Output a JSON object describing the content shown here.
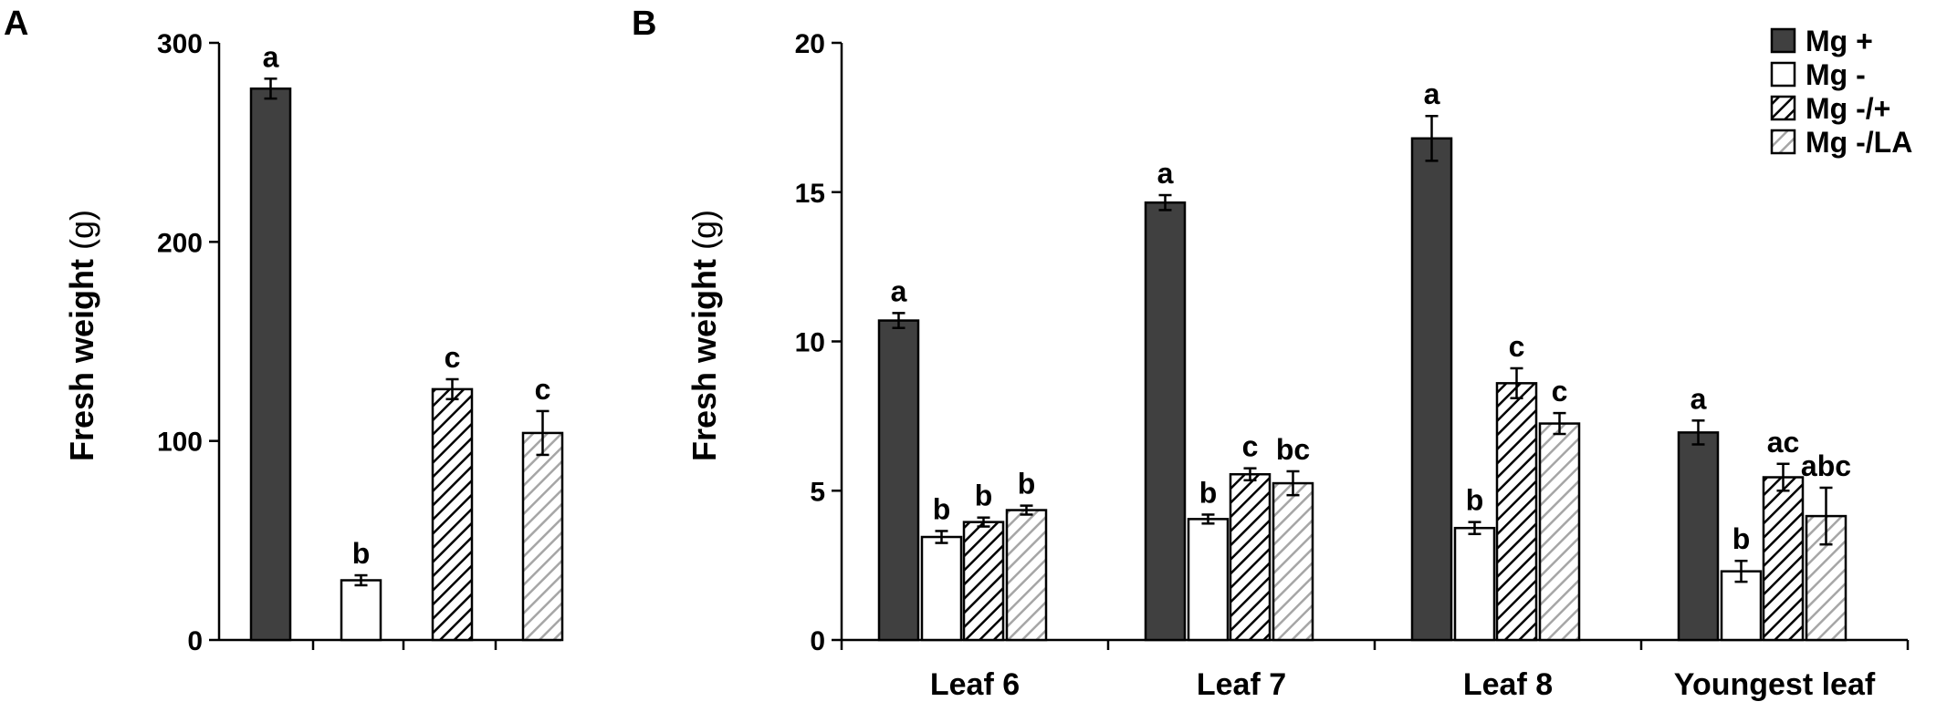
{
  "chart_data": [
    {
      "panel": "A",
      "type": "bar",
      "ylabel": "Fresh weight",
      "ylabel_unit": "(g)",
      "ylim": [
        0,
        300
      ],
      "yticks": [
        0,
        100,
        200,
        300
      ],
      "categories": [
        ""
      ],
      "series": [
        {
          "name": "Mg +",
          "values": [
            277
          ],
          "errors": [
            5
          ],
          "sig": [
            "a"
          ]
        },
        {
          "name": "Mg -",
          "values": [
            30
          ],
          "errors": [
            2.5
          ],
          "sig": [
            "b"
          ]
        },
        {
          "name": "Mg -/+",
          "values": [
            126
          ],
          "errors": [
            5
          ],
          "sig": [
            "c"
          ]
        },
        {
          "name": "Mg -/LA",
          "values": [
            104
          ],
          "errors": [
            11
          ],
          "sig": [
            "c"
          ]
        }
      ]
    },
    {
      "panel": "B",
      "type": "bar",
      "ylabel": "Fresh weight",
      "ylabel_unit": "(g)",
      "ylim": [
        0,
        20
      ],
      "yticks": [
        0,
        5,
        10,
        15,
        20
      ],
      "categories": [
        "Leaf 6",
        "Leaf 7",
        "Leaf 8",
        "Youngest leaf"
      ],
      "legend": "top-right",
      "series": [
        {
          "name": "Mg +",
          "values": [
            10.7,
            14.65,
            16.8,
            6.95
          ],
          "errors": [
            0.25,
            0.25,
            0.75,
            0.4
          ],
          "sig": [
            "a",
            "a",
            "a",
            "a"
          ]
        },
        {
          "name": "Mg -",
          "values": [
            3.45,
            4.05,
            3.75,
            2.3
          ],
          "errors": [
            0.2,
            0.15,
            0.2,
            0.35
          ],
          "sig": [
            "b",
            "b",
            "b",
            "b"
          ]
        },
        {
          "name": "Mg -/+",
          "values": [
            3.95,
            5.55,
            8.6,
            5.45
          ],
          "errors": [
            0.15,
            0.2,
            0.5,
            0.45
          ],
          "sig": [
            "b",
            "c",
            "c",
            "ac"
          ]
        },
        {
          "name": "Mg -/LA",
          "values": [
            4.35,
            5.25,
            7.25,
            4.15
          ],
          "errors": [
            0.15,
            0.4,
            0.35,
            0.95
          ],
          "sig": [
            "b",
            "bc",
            "c",
            "abc"
          ]
        }
      ]
    }
  ],
  "fills": [
    "dark",
    "white",
    "dense-hatch",
    "light-hatch"
  ],
  "colors": {
    "dark": "#404040",
    "hatch_dense": "#000000",
    "hatch_light": "#a6a6a6",
    "axis": "#000000"
  }
}
